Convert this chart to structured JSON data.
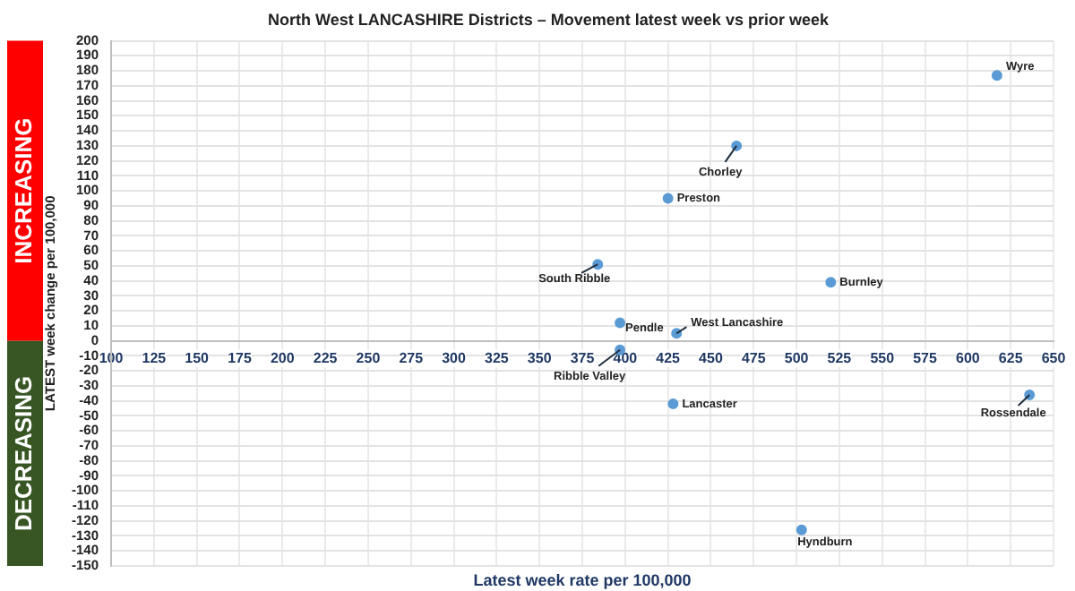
{
  "chart_data": {
    "type": "scatter",
    "title": "North West LANCASHIRE Districts – Movement latest week vs prior week",
    "xlabel": "Latest week rate per 100,000",
    "ylabel": "LATEST week change per 100,000",
    "x": [
      617,
      465,
      425,
      384,
      520,
      397,
      430,
      397,
      428,
      636,
      503
    ],
    "series": [
      {
        "color": "#5b9bd5",
        "values": [
          177,
          130,
          95,
          51,
          39,
          12,
          5,
          -6,
          -42,
          -36,
          -126
        ]
      }
    ],
    "annotations": [
      {
        "text": "Wyre",
        "x": 617,
        "y": 177
      },
      {
        "text": "Chorley",
        "x": 465,
        "y": 130
      },
      {
        "text": "Preston",
        "x": 425,
        "y": 95
      },
      {
        "text": "South Ribble",
        "x": 384,
        "y": 51
      },
      {
        "text": "Burnley",
        "x": 520,
        "y": 39
      },
      {
        "text": "Pendle",
        "x": 397,
        "y": 12
      },
      {
        "text": "West Lancashire",
        "x": 430,
        "y": 5
      },
      {
        "text": "Ribble Valley",
        "x": 397,
        "y": -6
      },
      {
        "text": "Lancaster",
        "x": 428,
        "y": -42
      },
      {
        "text": "Rossendale",
        "x": 636,
        "y": -36
      },
      {
        "text": "Hyndburn",
        "x": 503,
        "y": -126
      },
      "INCREASING",
      "DECREASING"
    ],
    "xlim": [
      100,
      650
    ],
    "xticks": [
      100,
      125,
      150,
      175,
      200,
      225,
      250,
      275,
      300,
      325,
      350,
      375,
      400,
      425,
      450,
      475,
      500,
      525,
      550,
      575,
      600,
      625,
      650
    ],
    "ylim": [
      -150,
      200
    ],
    "yticks": [
      -150,
      -140,
      -130,
      -120,
      -110,
      -100,
      -90,
      -80,
      -70,
      -60,
      -50,
      -40,
      -30,
      -20,
      -10,
      0,
      10,
      20,
      30,
      40,
      50,
      60,
      70,
      80,
      90,
      100,
      110,
      120,
      130,
      140,
      150,
      160,
      170,
      180,
      190,
      200
    ],
    "grid": true,
    "legend": false,
    "marker": "circle"
  }
}
